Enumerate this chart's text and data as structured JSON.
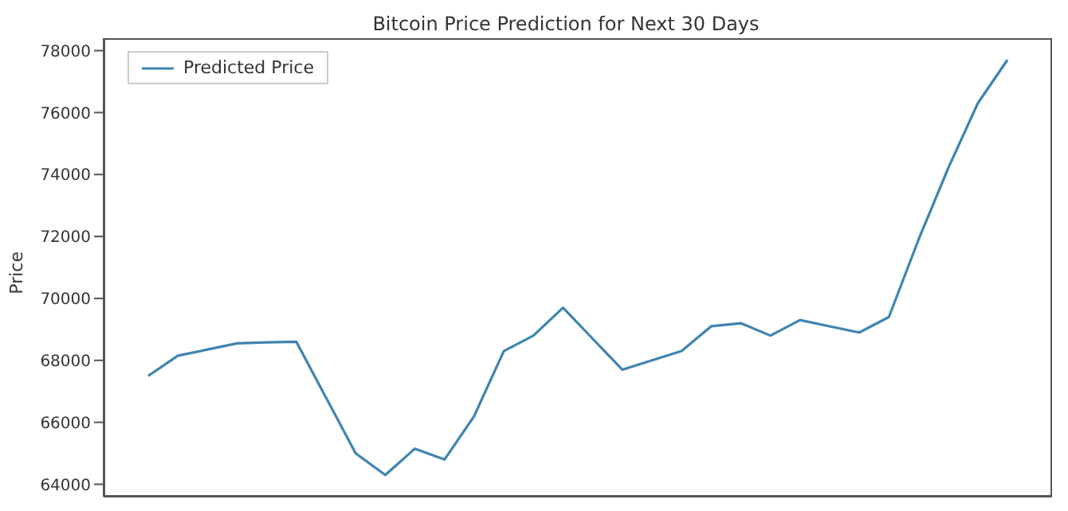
{
  "chart_data": {
    "type": "line",
    "title": "Bitcoin Price Prediction for Next 30 Days",
    "ylabel": "Price",
    "categories": [
      null,
      null,
      null,
      null,
      null,
      null,
      null,
      null,
      null,
      null,
      null,
      null,
      null,
      null,
      null,
      null,
      null,
      null,
      null,
      null,
      null,
      null,
      null,
      null,
      null,
      null,
      null,
      null,
      null,
      null
    ],
    "series": [
      {
        "name": "Predicted Price",
        "color": "#3f84b0",
        "values": [
          67500,
          68150,
          68350,
          68550,
          68580,
          68600,
          66800,
          65000,
          64300,
          65150,
          64800,
          66200,
          68300,
          68800,
          69700,
          68700,
          67700,
          68000,
          68300,
          69100,
          69200,
          68800,
          69300,
          69100,
          68900,
          69400,
          71900,
          74200,
          76300,
          77700
        ]
      }
    ],
    "ylim": [
      63600,
      78400
    ],
    "yticks": [
      64000,
      66000,
      68000,
      70000,
      72000,
      74000,
      76000,
      78000
    ],
    "tick_labels": "y",
    "legend": "top left",
    "marker": "none",
    "line_style": "solid"
  }
}
